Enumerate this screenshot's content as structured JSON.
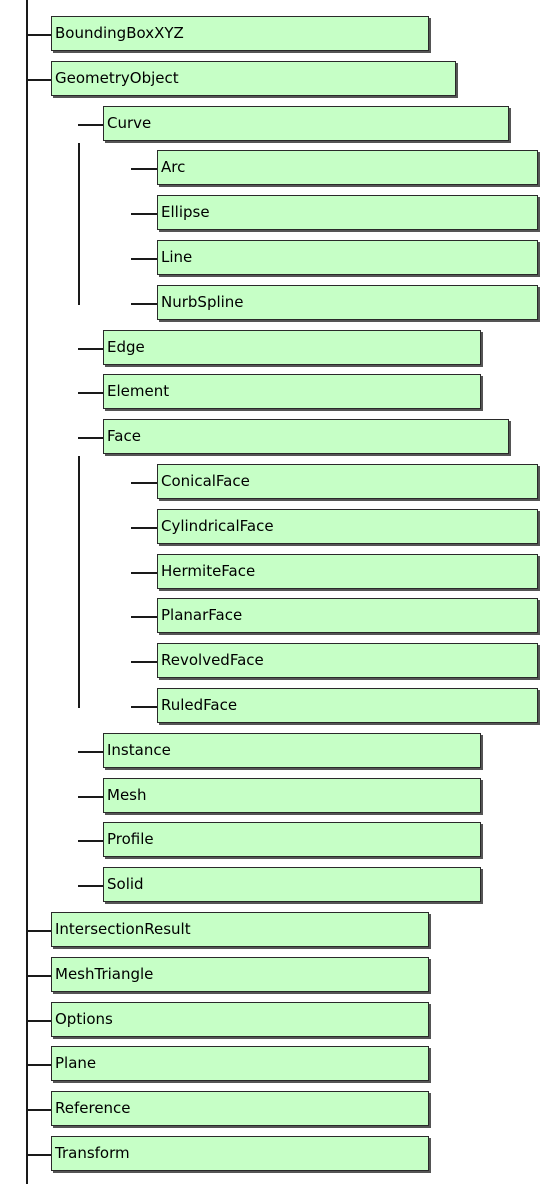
{
  "nodes": [
    {
      "id": "boundingboxxyz",
      "label": "BoundingBoxXYZ",
      "depth": 0,
      "parent": null
    },
    {
      "id": "geometryobject",
      "label": "GeometryObject",
      "depth": 0,
      "parent": null
    },
    {
      "id": "curve",
      "label": "Curve",
      "depth": 1,
      "parent": "geometryobject"
    },
    {
      "id": "arc",
      "label": "Arc",
      "depth": 2,
      "parent": "curve"
    },
    {
      "id": "ellipse",
      "label": "Ellipse",
      "depth": 2,
      "parent": "curve"
    },
    {
      "id": "line",
      "label": "Line",
      "depth": 2,
      "parent": "curve"
    },
    {
      "id": "nurbspline",
      "label": "NurbSpline",
      "depth": 2,
      "parent": "curve"
    },
    {
      "id": "edge",
      "label": "Edge",
      "depth": 1,
      "parent": "geometryobject"
    },
    {
      "id": "element",
      "label": "Element",
      "depth": 1,
      "parent": "geometryobject"
    },
    {
      "id": "face",
      "label": "Face",
      "depth": 1,
      "parent": "geometryobject"
    },
    {
      "id": "conicalface",
      "label": "ConicalFace",
      "depth": 2,
      "parent": "face"
    },
    {
      "id": "cylindricalface",
      "label": "CylindricalFace",
      "depth": 2,
      "parent": "face"
    },
    {
      "id": "hermiteface",
      "label": "HermiteFace",
      "depth": 2,
      "parent": "face"
    },
    {
      "id": "planarface",
      "label": "PlanarFace",
      "depth": 2,
      "parent": "face"
    },
    {
      "id": "revolvedface",
      "label": "RevolvedFace",
      "depth": 2,
      "parent": "face"
    },
    {
      "id": "ruledface",
      "label": "RuledFace",
      "depth": 2,
      "parent": "face"
    },
    {
      "id": "instance",
      "label": "Instance",
      "depth": 1,
      "parent": "geometryobject"
    },
    {
      "id": "mesh",
      "label": "Mesh",
      "depth": 1,
      "parent": "geometryobject"
    },
    {
      "id": "profile",
      "label": "Profile",
      "depth": 1,
      "parent": "geometryobject"
    },
    {
      "id": "solid",
      "label": "Solid",
      "depth": 1,
      "parent": "geometryobject"
    },
    {
      "id": "intersectionresult",
      "label": "IntersectionResult",
      "depth": 0,
      "parent": null
    },
    {
      "id": "meshtriangle",
      "label": "MeshTriangle",
      "depth": 0,
      "parent": null
    },
    {
      "id": "options",
      "label": "Options",
      "depth": 0,
      "parent": null
    },
    {
      "id": "plane",
      "label": "Plane",
      "depth": 0,
      "parent": null
    },
    {
      "id": "reference",
      "label": "Reference",
      "depth": 0,
      "parent": null
    },
    {
      "id": "transform",
      "label": "Transform",
      "depth": 0,
      "parent": null
    }
  ],
  "colors": {
    "node_fill": "#c6ffc6",
    "node_border": "#2a2a2a",
    "connector": "#1a1a1a"
  }
}
